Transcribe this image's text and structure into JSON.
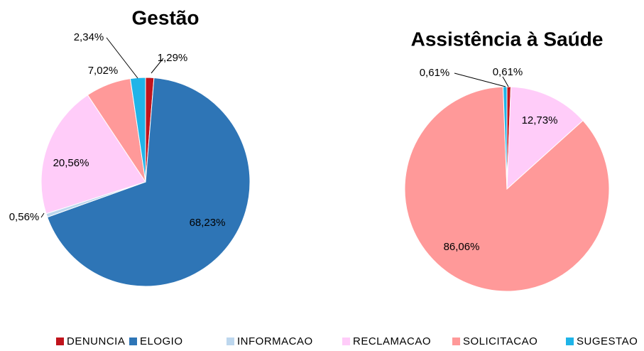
{
  "chart_data": [
    {
      "type": "pie",
      "title": "Gestão",
      "categories": [
        "DENUNCIA",
        "ELOGIO",
        "INFORMACAO",
        "RECLAMACAO",
        "SOLICITACAO",
        "SUGESTAO"
      ],
      "values": [
        1.29,
        68.23,
        0.56,
        20.56,
        7.02,
        2.34
      ],
      "value_labels": [
        "1,29%",
        "68,23%",
        "0,56%",
        "20,56%",
        "7,02%",
        "2,34%"
      ],
      "colors": [
        "#c0141c",
        "#2e75b6",
        "#bdd7ee",
        "#ffccf9",
        "#ff9999",
        "#1fb4e8"
      ]
    },
    {
      "type": "pie",
      "title": "Assistência à Saúde",
      "categories": [
        "DENUNCIA",
        "RECLAMACAO",
        "SOLICITACAO",
        "SUGESTAO"
      ],
      "values": [
        0.61,
        12.73,
        86.06,
        0.61
      ],
      "value_labels": [
        "0,61%",
        "12,73%",
        "86,06%",
        "0,61%"
      ]
    }
  ],
  "legend_position": "bottom"
}
